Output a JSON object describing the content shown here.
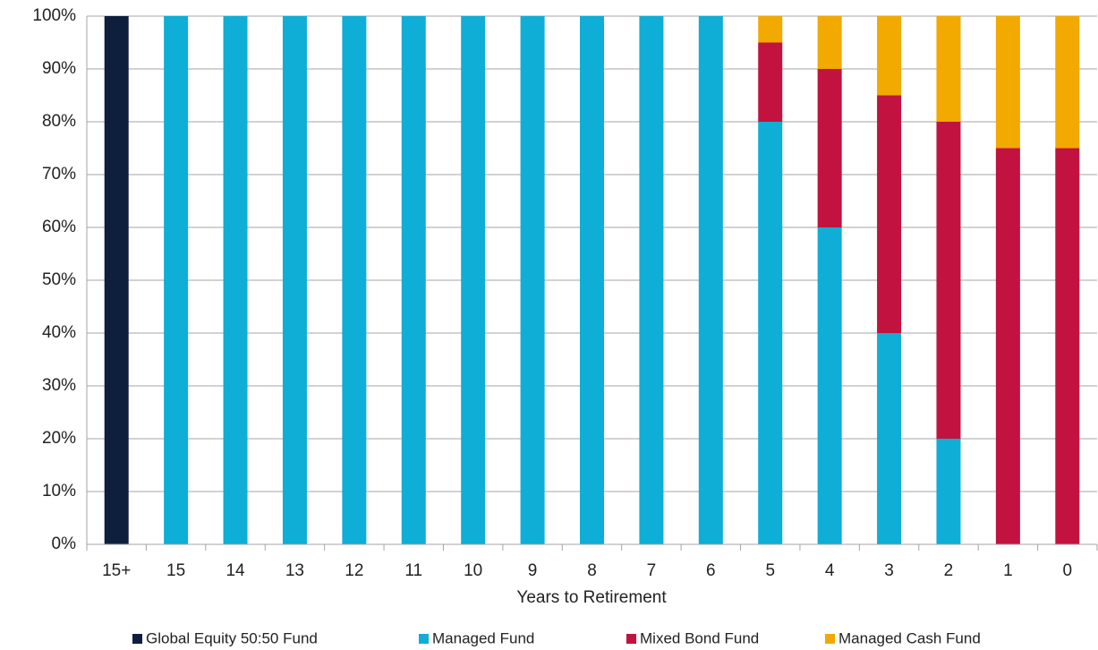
{
  "chart_data": {
    "type": "stacked_bar",
    "x_label": "Years to Retirement",
    "categories": [
      "15+",
      "15",
      "14",
      "13",
      "12",
      "11",
      "10",
      "9",
      "8",
      "7",
      "6",
      "5",
      "4",
      "3",
      "2",
      "1",
      "0"
    ],
    "series": [
      {
        "name": "Global Equity 50:50 Fund",
        "color": "#0d1f3d",
        "values": [
          100,
          0,
          0,
          0,
          0,
          0,
          0,
          0,
          0,
          0,
          0,
          0,
          0,
          0,
          0,
          0,
          0
        ]
      },
      {
        "name": "Managed Fund",
        "color": "#0eaed6",
        "values": [
          0,
          100,
          100,
          100,
          100,
          100,
          100,
          100,
          100,
          100,
          100,
          80,
          60,
          40,
          20,
          0,
          0
        ]
      },
      {
        "name": "Mixed Bond Fund",
        "color": "#c2123f",
        "values": [
          0,
          0,
          0,
          0,
          0,
          0,
          0,
          0,
          0,
          0,
          0,
          15,
          30,
          45,
          60,
          75,
          75
        ]
      },
      {
        "name": "Managed Cash Fund",
        "color": "#f2a900",
        "values": [
          0,
          0,
          0,
          0,
          0,
          0,
          0,
          0,
          0,
          0,
          0,
          5,
          10,
          15,
          20,
          25,
          25
        ]
      }
    ],
    "ylim": [
      0,
      100
    ],
    "yticks": [
      {
        "value": 0,
        "label": "0%"
      },
      {
        "value": 10,
        "label": "10%"
      },
      {
        "value": 20,
        "label": "20%"
      },
      {
        "value": 30,
        "label": "30%"
      },
      {
        "value": 40,
        "label": "40%"
      },
      {
        "value": 50,
        "label": "50%"
      },
      {
        "value": 60,
        "label": "60%"
      },
      {
        "value": 70,
        "label": "70%"
      },
      {
        "value": 80,
        "label": "80%"
      },
      {
        "value": 90,
        "label": "90%"
      },
      {
        "value": 100,
        "label": "100%"
      }
    ],
    "grid": true,
    "legend": "bottom"
  }
}
